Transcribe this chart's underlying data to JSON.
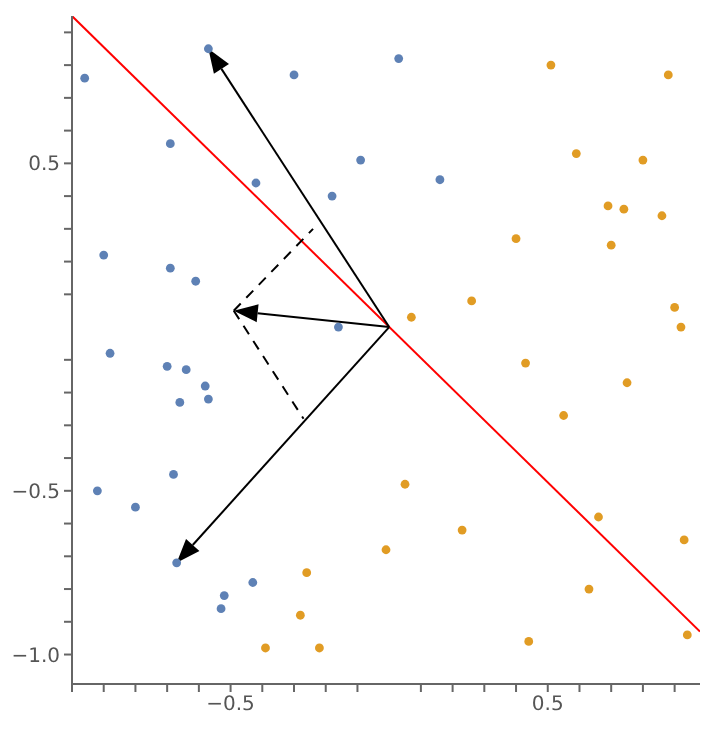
{
  "chart_data": {
    "type": "scatter",
    "xlim": [
      -1.0,
      0.98
    ],
    "ylim": [
      -1.09,
      0.95
    ],
    "xticks": [
      {
        "value": -1.0,
        "label": null
      },
      {
        "value": -0.9,
        "label": null
      },
      {
        "value": -0.8,
        "label": null
      },
      {
        "value": -0.7,
        "label": null
      },
      {
        "value": -0.6,
        "label": null
      },
      {
        "value": -0.5,
        "label": "−0.5"
      },
      {
        "value": -0.4,
        "label": null
      },
      {
        "value": -0.3,
        "label": null
      },
      {
        "value": -0.2,
        "label": null
      },
      {
        "value": -0.1,
        "label": null
      },
      {
        "value": 0.1,
        "label": null
      },
      {
        "value": 0.2,
        "label": null
      },
      {
        "value": 0.3,
        "label": null
      },
      {
        "value": 0.4,
        "label": null
      },
      {
        "value": 0.5,
        "label": "0.5"
      },
      {
        "value": 0.6,
        "label": null
      },
      {
        "value": 0.7,
        "label": null
      },
      {
        "value": 0.8,
        "label": null
      },
      {
        "value": 0.9,
        "label": null
      }
    ],
    "yticks": [
      {
        "value": -1.0,
        "label": "−1.0"
      },
      {
        "value": -0.9,
        "label": null
      },
      {
        "value": -0.8,
        "label": null
      },
      {
        "value": -0.7,
        "label": null
      },
      {
        "value": -0.6,
        "label": null
      },
      {
        "value": -0.5,
        "label": "−0.5"
      },
      {
        "value": -0.4,
        "label": null
      },
      {
        "value": -0.3,
        "label": null
      },
      {
        "value": -0.2,
        "label": null
      },
      {
        "value": -0.1,
        "label": null
      },
      {
        "value": 0.1,
        "label": null
      },
      {
        "value": 0.2,
        "label": null
      },
      {
        "value": 0.3,
        "label": null
      },
      {
        "value": 0.4,
        "label": null
      },
      {
        "value": 0.5,
        "label": "0.5"
      },
      {
        "value": 0.6,
        "label": null
      },
      {
        "value": 0.7,
        "label": null
      },
      {
        "value": 0.8,
        "label": null
      },
      {
        "value": 0.9,
        "label": null
      }
    ],
    "grid": false,
    "series": [
      {
        "type": "scatter",
        "marker": "circle",
        "color": "#5e81b5",
        "x": [
          -0.96,
          -0.57,
          -0.3,
          -0.69,
          -0.42,
          -0.18,
          -0.09,
          -0.9,
          -0.69,
          -0.61,
          -0.16,
          0.03,
          0.16,
          -0.88,
          -0.7,
          -0.64,
          -0.58,
          -0.66,
          -0.57,
          -0.68,
          -0.92,
          -0.8,
          -0.67,
          -0.43,
          -0.52,
          -0.53
        ],
        "values": [
          0.76,
          0.85,
          0.77,
          0.56,
          0.44,
          0.4,
          0.51,
          0.22,
          0.18,
          0.14,
          0.0,
          0.82,
          0.45,
          -0.08,
          -0.12,
          -0.13,
          -0.18,
          -0.23,
          -0.22,
          -0.45,
          -0.5,
          -0.55,
          -0.72,
          -0.78,
          -0.82,
          -0.86
        ]
      },
      {
        "type": "scatter",
        "marker": "circle",
        "color": "#e19c24",
        "x": [
          0.51,
          0.88,
          0.59,
          0.8,
          0.69,
          0.74,
          0.86,
          0.4,
          0.7,
          0.26,
          0.07,
          0.9,
          0.92,
          0.43,
          0.75,
          0.55,
          0.05,
          -0.01,
          0.23,
          0.66,
          0.93,
          0.63,
          0.44,
          0.94,
          -0.26,
          -0.28,
          -0.39,
          -0.22
        ],
        "values": [
          0.8,
          0.77,
          0.53,
          0.51,
          0.37,
          0.36,
          0.34,
          0.27,
          0.25,
          0.08,
          0.03,
          0.06,
          0.0,
          -0.11,
          -0.17,
          -0.27,
          -0.48,
          -0.68,
          -0.62,
          -0.58,
          -0.65,
          -0.8,
          -0.96,
          -0.94,
          -0.75,
          -0.88,
          -0.98,
          -0.98
        ]
      },
      {
        "type": "line",
        "color": "#ff0000",
        "marker": "none",
        "x": [
          -1.0,
          0.98
        ],
        "values": [
          0.95,
          -0.93
        ]
      },
      {
        "type": "line",
        "color": "#000000",
        "marker": "none",
        "line_style": "dashed",
        "x": [
          -0.49,
          -0.24
        ],
        "values": [
          0.05,
          0.3
        ]
      },
      {
        "type": "line",
        "color": "#000000",
        "marker": "none",
        "line_style": "dashed",
        "x": [
          -0.49,
          -0.27
        ],
        "values": [
          0.05,
          -0.28
        ]
      }
    ]
  }
}
